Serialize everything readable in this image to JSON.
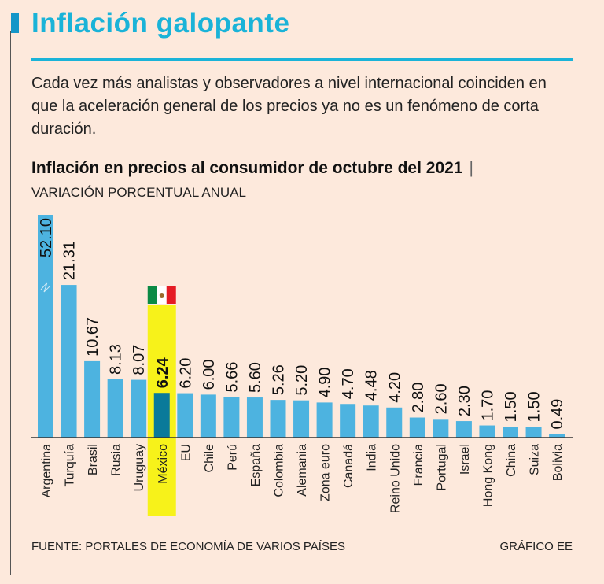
{
  "header": {
    "title": "Inflación galopante",
    "intro": "Cada vez más analistas y observadores a nivel internacional coinciden en que la aceleración general de los precios ya no es un fenómeno de corta duración."
  },
  "chart_data": {
    "type": "bar",
    "title": "Inflación en precios al consumidor de octubre del 2021",
    "subtitle": "VARIACIÓN PORCENTUAL ANUAL",
    "categories": [
      "Argentina",
      "Turquía",
      "Brasil",
      "Rusia",
      "Uruguay",
      "México",
      "EU",
      "Chile",
      "Perú",
      "España",
      "Colombia",
      "Alemania",
      "Zona euro",
      "Canadá",
      "India",
      "Reino Unido",
      "Francia",
      "Portugal",
      "Israel",
      "Hong Kong",
      "China",
      "Suiza",
      "Bolivia"
    ],
    "values": [
      52.1,
      21.31,
      10.67,
      8.13,
      8.07,
      6.24,
      6.2,
      6.0,
      5.66,
      5.6,
      5.26,
      5.2,
      4.9,
      4.7,
      4.48,
      4.2,
      2.8,
      2.6,
      2.3,
      1.7,
      1.5,
      1.5,
      0.49
    ],
    "labels": [
      "52.10",
      "21.31",
      "10.67",
      "8.13",
      "8.07",
      "6.24",
      "6.20",
      "6.00",
      "5.66",
      "5.60",
      "5.26",
      "5.20",
      "4.90",
      "4.70",
      "4.48",
      "4.20",
      "2.80",
      "2.60",
      "2.30",
      "1.70",
      "1.50",
      "1.50",
      "0.49"
    ],
    "highlight": "México",
    "broken_axis_category": "Argentina",
    "colors": {
      "bar": "#4db3e0",
      "highlight_bar": "#0a7a9a",
      "highlight_band": "#f7f21a"
    }
  },
  "footer": {
    "source": "FUENTE: PORTALES DE ECONOMÍA DE VARIOS PAÍSES",
    "credit": "GRÁFICO EE"
  }
}
